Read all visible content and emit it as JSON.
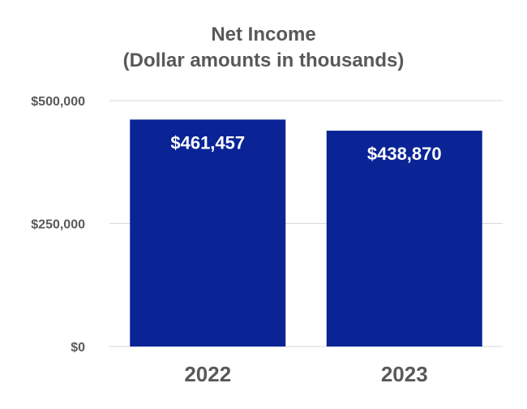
{
  "chart_data": {
    "type": "bar",
    "title": "Net Income",
    "subtitle": "(Dollar amounts in thousands)",
    "categories": [
      "2022",
      "2023"
    ],
    "values": [
      461457,
      438870
    ],
    "data_labels": [
      "$461,457",
      "$438,870"
    ],
    "ylim": [
      0,
      500000
    ],
    "yticks": [
      0,
      250000,
      500000
    ],
    "ytick_labels": [
      "$0",
      "$250,000",
      "$500,000"
    ],
    "grid": true,
    "legend": "none",
    "bar_color": "#0a2496",
    "label_color": "#ffffff",
    "grid_color": "#d9d9d9",
    "text_color": "#595959"
  }
}
